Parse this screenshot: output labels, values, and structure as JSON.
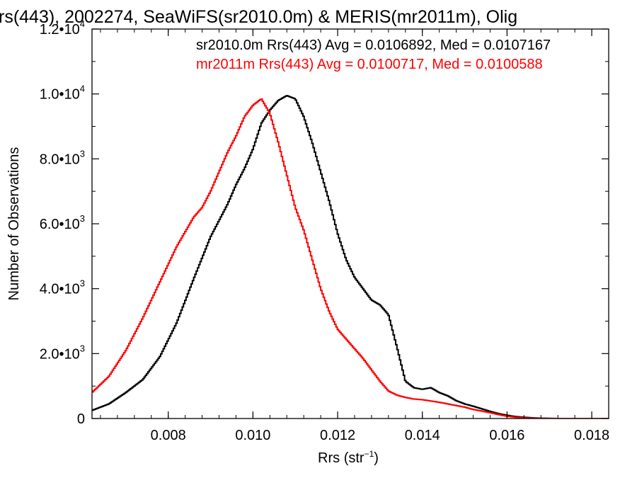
{
  "chart_data": {
    "type": "line",
    "title": "rs(443), 2002274, SeaWiFS(sr2010.0m) & MERIS(mr2011m), Olig",
    "xlabel": "Rrs (str",
    "xlabel_sup": "−1",
    "xlabel_close": ")",
    "ylabel": "Number of Observations",
    "xlim": [
      0.0062,
      0.0184
    ],
    "ylim": [
      0,
      12000
    ],
    "grid": false,
    "x_ticks": [
      {
        "value": 0.008,
        "label": "0.008"
      },
      {
        "value": 0.01,
        "label": "0.010"
      },
      {
        "value": 0.012,
        "label": "0.012"
      },
      {
        "value": 0.014,
        "label": "0.014"
      },
      {
        "value": 0.016,
        "label": "0.016"
      },
      {
        "value": 0.018,
        "label": "0.018"
      }
    ],
    "y_ticks": [
      {
        "value": 0,
        "label": "0",
        "exp": ""
      },
      {
        "value": 2000,
        "label": "2.0•10",
        "exp": "3"
      },
      {
        "value": 4000,
        "label": "4.0•10",
        "exp": "3"
      },
      {
        "value": 6000,
        "label": "6.0•10",
        "exp": "3"
      },
      {
        "value": 8000,
        "label": "8.0•10",
        "exp": "3"
      },
      {
        "value": 10000,
        "label": "1.0•10",
        "exp": "4"
      },
      {
        "value": 12000,
        "label": "1.2•10",
        "exp": "4"
      }
    ],
    "legend_placement": "top-right",
    "series": [
      {
        "name": "sr2010.0m Rrs(443) Avg = 0.0106892, Med = 0.0107167",
        "color": "#000000",
        "x": [
          0.0062,
          0.0066,
          0.007,
          0.0074,
          0.0078,
          0.0082,
          0.0086,
          0.009,
          0.0094,
          0.0096,
          0.0098,
          0.01,
          0.0102,
          0.0104,
          0.0106,
          0.0108,
          0.011,
          0.0112,
          0.0114,
          0.0116,
          0.0118,
          0.012,
          0.0122,
          0.0124,
          0.0126,
          0.0128,
          0.013,
          0.0132,
          0.0134,
          0.0136,
          0.0138,
          0.014,
          0.0142,
          0.0144,
          0.0146,
          0.0148,
          0.015,
          0.0152,
          0.0154,
          0.0156,
          0.0158,
          0.016,
          0.0162,
          0.0164,
          0.0166,
          0.0168,
          0.017,
          0.0172,
          0.0176,
          0.018,
          0.0184
        ],
        "y": [
          250,
          450,
          800,
          1200,
          1900,
          2950,
          4300,
          5600,
          6600,
          7200,
          7700,
          8300,
          9100,
          9500,
          9800,
          9950,
          9850,
          9300,
          8500,
          7600,
          6700,
          5700,
          4900,
          4350,
          4000,
          3650,
          3500,
          3200,
          2200,
          1150,
          950,
          900,
          950,
          800,
          700,
          550,
          450,
          380,
          300,
          220,
          150,
          100,
          60,
          40,
          20,
          10,
          5,
          0,
          0,
          0,
          0
        ]
      },
      {
        "name": "mr2011m Rrs(443) Avg = 0.0100717, Med = 0.0100588",
        "color": "#ff0000",
        "x": [
          0.0062,
          0.0066,
          0.007,
          0.0074,
          0.0078,
          0.0082,
          0.0086,
          0.0088,
          0.009,
          0.0092,
          0.0094,
          0.0096,
          0.0098,
          0.01,
          0.0102,
          0.0104,
          0.0106,
          0.0108,
          0.011,
          0.0112,
          0.0114,
          0.0116,
          0.0118,
          0.012,
          0.0122,
          0.0124,
          0.0126,
          0.0128,
          0.013,
          0.0132,
          0.0134,
          0.0136,
          0.0138,
          0.014,
          0.0142,
          0.0144,
          0.0146,
          0.0148,
          0.015,
          0.0152,
          0.0154,
          0.0156,
          0.0158,
          0.016,
          0.0162,
          0.0164,
          0.0166,
          0.0168,
          0.017,
          0.0172,
          0.0176,
          0.018,
          0.0184
        ],
        "y": [
          800,
          1300,
          2100,
          3100,
          4200,
          5300,
          6200,
          6500,
          7000,
          7600,
          8200,
          8700,
          9300,
          9650,
          9850,
          9400,
          8500,
          7500,
          6500,
          5800,
          4900,
          4000,
          3300,
          2750,
          2450,
          2150,
          1850,
          1500,
          1150,
          850,
          720,
          650,
          600,
          580,
          540,
          500,
          450,
          400,
          350,
          280,
          230,
          180,
          120,
          70,
          40,
          20,
          10,
          5,
          0,
          0,
          0,
          0,
          0
        ]
      }
    ]
  }
}
